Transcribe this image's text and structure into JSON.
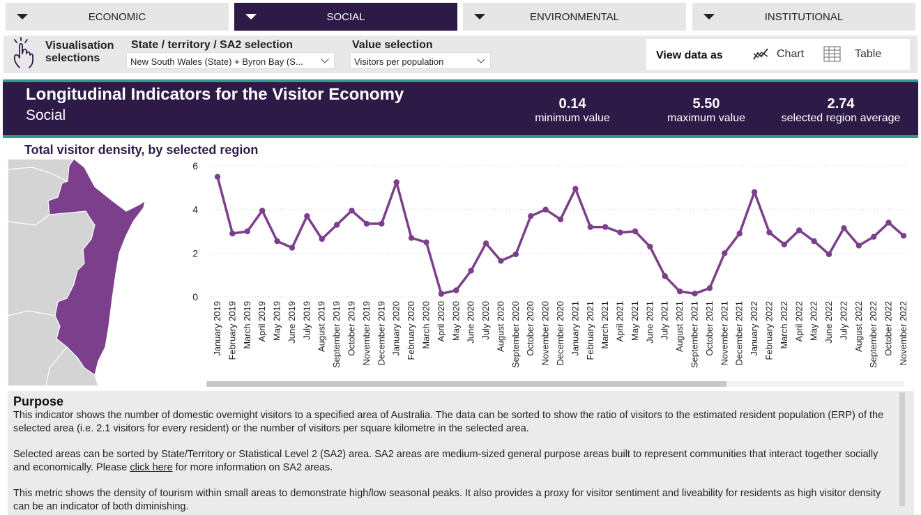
{
  "tabs": [
    {
      "label": "ECONOMIC",
      "active": false
    },
    {
      "label": "SOCIAL",
      "active": true
    },
    {
      "label": "ENVIRONMENTAL",
      "active": false
    },
    {
      "label": "INSTITUTIONAL",
      "active": false
    }
  ],
  "selections": {
    "title_line1": "Visualisation",
    "title_line2": "selections",
    "region_label": "State / territory / SA2 selection",
    "region_value": "New South Wales (State) + Byron Bay (S...",
    "value_label": "Value selection",
    "value_value": "Visitors per population",
    "view_label": "View data as",
    "chart_option": "Chart",
    "table_option": "Table"
  },
  "header": {
    "title": "Longitudinal Indicators for the Visitor Economy",
    "subtitle": "Social",
    "stats": [
      {
        "value": "0.14",
        "label": "minimum value"
      },
      {
        "value": "5.50",
        "label": "maximum value"
      },
      {
        "value": "2.74",
        "label": "selected region average"
      }
    ]
  },
  "chart_title": "Total visitor density, by selected region",
  "chart_data": {
    "type": "line",
    "title": "Total visitor density, by selected region",
    "xlabel": "",
    "ylabel": "",
    "ylim": [
      0,
      6
    ],
    "yticks": [
      0,
      2,
      4,
      6
    ],
    "grid": true,
    "legend": "none",
    "line_color": "#7b3f8c",
    "categories": [
      "January 2019",
      "February 2019",
      "March 2019",
      "April 2019",
      "May 2019",
      "June 2019",
      "July 2019",
      "August 2019",
      "September 2019",
      "October 2019",
      "November 2019",
      "December 2019",
      "January 2020",
      "February 2020",
      "March 2020",
      "April 2020",
      "May 2020",
      "June 2020",
      "July 2020",
      "August 2020",
      "September 2020",
      "October 2020",
      "November 2020",
      "December 2020",
      "January 2021",
      "February 2021",
      "March 2021",
      "April 2021",
      "May 2021",
      "June 2021",
      "July 2021",
      "August 2021",
      "September 2021",
      "October 2021",
      "November 2021",
      "December 2021",
      "January 2022",
      "February 2022",
      "March 2022",
      "April 2022",
      "May 2022",
      "June 2022",
      "July 2022",
      "August 2022",
      "September 2022",
      "October 2022",
      "November 2022"
    ],
    "values": [
      5.5,
      2.9,
      3.0,
      3.95,
      2.55,
      2.25,
      3.7,
      2.65,
      3.3,
      3.95,
      3.35,
      3.35,
      5.25,
      2.7,
      2.5,
      0.14,
      0.3,
      1.2,
      2.45,
      1.65,
      1.95,
      3.7,
      4.0,
      3.55,
      4.95,
      3.2,
      3.2,
      2.95,
      3.0,
      2.3,
      0.95,
      0.25,
      0.15,
      0.4,
      2.0,
      2.9,
      4.8,
      2.95,
      2.4,
      3.05,
      2.55,
      1.95,
      3.15,
      2.35,
      2.75,
      3.4,
      2.8
    ]
  },
  "purpose": {
    "title": "Purpose",
    "p1": "This indicator shows the number of domestic overnight visitors to a specified area of Australia. The data can be sorted to show the ratio of visitors to the estimated resident population (ERP) of the selected area (i.e. 2.1 visitors for every resident) or the number of visitors per square kilometre in the selected area.",
    "p2_a": "Selected areas can be sorted by State/Territory or Statistical Level 2 (SA2) area. SA2 areas are medium-sized general purpose areas built to represent communities that interact together socially and economically. Please ",
    "p2_link": "click here",
    "p2_b": " for more information on SA2 areas.",
    "p3": "This metric shows the density of tourism within small areas to demonstrate high/low seasonal peaks. It also provides a proxy for visitor sentiment and liveability for residents as high visitor density can be an indicator of both diminishing."
  },
  "colors": {
    "primary": "#2e1a47",
    "accent": "#2a9d8f",
    "series": "#7b3f8c"
  },
  "icons": {
    "selection": "hand-pointer-icon",
    "chart": "chart-line-icon",
    "table": "table-grid-icon",
    "dropdown": "chevron-down-icon"
  }
}
